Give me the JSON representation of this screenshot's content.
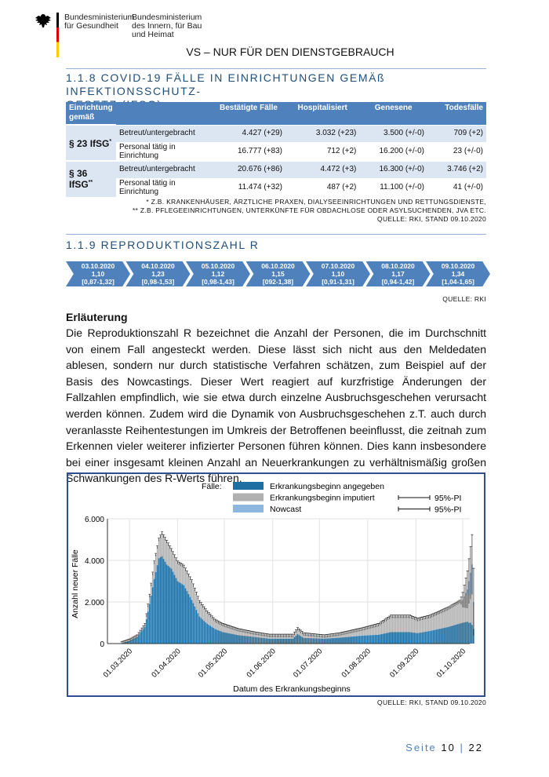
{
  "header": {
    "ministry1": [
      "Bundesministerium",
      "für Gesundheit"
    ],
    "ministry2": [
      "Bundesministerium",
      "des Innern, für Bau",
      "und Heimat"
    ],
    "classification": "VS – NUR FÜR DEN DIENSTGEBRAUCH"
  },
  "section1": {
    "title_line1": "1.1.8  COVID-19 FÄLLE IN EINRICHTUNGEN GEMÄß INFEKTIONSSCHUTZ-",
    "title_line2": "GESETZ (IFSG)",
    "columns": [
      "Einrichtung gemäß",
      "",
      "Bestätigte Fälle",
      "Hospitalisiert",
      "Genesene",
      "Todesfälle"
    ],
    "groups": [
      {
        "label": "§ 23 IfSG",
        "mark": "*",
        "rows": [
          [
            "Betreut/untergebracht",
            "4.427 (+29)",
            "3.032 (+23)",
            "3.500 (+/-0)",
            "709 (+2)"
          ],
          [
            "Personal tätig in Einrichtung",
            "16.777 (+83)",
            "712 (+2)",
            "16.200 (+/-0)",
            "23 (+/-0)"
          ]
        ]
      },
      {
        "label": "§ 36 IfSG",
        "mark": "**",
        "rows": [
          [
            "Betreut/untergebracht",
            "20.676 (+86)",
            "4.472 (+3)",
            "16.300 (+/-0)",
            "3.746 (+2)"
          ],
          [
            "Personal tätig in Einrichtung",
            "11.474 (+32)",
            "487 (+2)",
            "11.100 (+/-0)",
            "41 (+/-0)"
          ]
        ]
      }
    ],
    "footnotes": [
      "* Z.B. KRANKENHÄUSER, ÄRZTLICHE PRAXEN, DIALYSEEINRICHTUNGEN UND RETTUNGSDIENSTE,",
      "** Z.B. PFLEGEEINRICHTUNGEN, UNTERKÜNFTE FÜR OBDACHLOSE ODER ASYLSUCHENDEN, JVA ETC.",
      "QUELLE: RKI, STAND 09.10.2020"
    ]
  },
  "section2": {
    "title": "1.1.9  REPRODUKTIONSZAHL R",
    "days": [
      {
        "date": "03.10.2020",
        "r": "1,10",
        "ci": "[0,87-1,32]"
      },
      {
        "date": "04.10.2020",
        "r": "1,23",
        "ci": "[0,98-1,53]"
      },
      {
        "date": "05.10.2020",
        "r": "1,12",
        "ci": "[0,98-1,43]"
      },
      {
        "date": "06.10.2020",
        "r": "1,15",
        "ci": "[092-1,38]"
      },
      {
        "date": "07.10.2020",
        "r": "1,10",
        "ci": "[0,91-1,31]"
      },
      {
        "date": "08.10.2020",
        "r": "1,17",
        "ci": "[0,94-1,42]"
      },
      {
        "date": "09.10.2020",
        "r": "1,34",
        "ci": "[1,04-1,65]"
      }
    ],
    "source": "QUELLE: RKI",
    "expl_heading": "Erläuterung",
    "expl_text": "Die Reproduktionszahl R bezeichnet die Anzahl der Personen, die im Durchschnitt von einem Fall angesteckt werden. Diese lässt sich nicht aus den Meldedaten ablesen, sondern nur durch statistische Verfahren schätzen, zum Beispiel auf der Basis des Nowcastings. Dieser Wert reagiert auf kurzfristige Änderungen der Fallzahlen empfindlich, wie sie etwa durch einzelne Ausbruchsgeschehen verursacht werden können. Zudem wird die Dynamik von Ausbruchsgeschehen z.T. auch durch veranlasste Reihentestungen im Umkreis der Betroffenen beeinflusst, die zeitnah zum Erkennen vieler weiterer infizierter Personen führen können. Dies kann insbesondere bei einer insgesamt kleinen Anzahl an Neuerkrankungen zu verhältnismäßig großen Schwankungen des R-Werts führen.",
    "chart_source": "QUELLE: RKI, STAND 09.10.2020"
  },
  "chart_data": {
    "type": "bar",
    "stacked": true,
    "legend_title": "Fälle:",
    "legend": [
      "Erkrankungsbeginn angegeben",
      "Erkrankungsbeginn imputiert",
      "Nowcast"
    ],
    "pi_labels": [
      "95%-PI",
      "95%-PI"
    ],
    "colors": {
      "reported": "#1f6fa3",
      "imputed": "#b0b0b0",
      "nowcast": "#8cb8df"
    },
    "ylabel": "Anzahl neuer Fälle",
    "xlabel": "Datum des Erkrankungsbeginns",
    "ylim": [
      0,
      6000
    ],
    "yticks": [
      "0",
      "2.000",
      "4.000",
      "6.000"
    ],
    "ytick_values": [
      0,
      2000,
      4000,
      6000
    ],
    "xticks": [
      "01.03.2020",
      "01.04.2020",
      "01.05.2020",
      "01.06.2020",
      "01.07.2020",
      "01.08.2020",
      "01.09.2020",
      "01.10.2020"
    ],
    "xtick_days": [
      0,
      31,
      61,
      92,
      122,
      153,
      184,
      214
    ],
    "anchors_day_since_0103": [
      -5,
      0,
      5,
      10,
      13,
      16,
      19,
      21,
      24,
      27,
      31,
      35,
      40,
      45,
      50,
      55,
      60,
      70,
      80,
      90,
      100,
      105,
      108,
      112,
      125,
      135,
      150,
      160,
      168,
      180,
      185,
      193,
      205,
      214,
      217,
      218,
      219,
      220,
      221
    ],
    "total": [
      20,
      150,
      350,
      900,
      2300,
      3900,
      5000,
      5300,
      4900,
      4500,
      3900,
      3700,
      3000,
      2000,
      1500,
      1100,
      900,
      650,
      500,
      380,
      380,
      380,
      700,
      450,
      350,
      450,
      700,
      900,
      1300,
      1300,
      1150,
      1300,
      1700,
      2100,
      2400,
      2300,
      2400,
      2400,
      1800
    ],
    "reported": [
      15,
      120,
      300,
      800,
      1900,
      3100,
      4100,
      4200,
      3800,
      3600,
      3000,
      2800,
      2100,
      1300,
      950,
      700,
      550,
      400,
      320,
      230,
      230,
      230,
      450,
      270,
      230,
      280,
      380,
      420,
      550,
      550,
      500,
      600,
      800,
      1000,
      1050,
      1000,
      1000,
      900,
      700
    ],
    "nowcast": [
      0,
      0,
      0,
      0,
      0,
      0,
      0,
      0,
      0,
      0,
      0,
      0,
      0,
      0,
      0,
      0,
      0,
      0,
      0,
      0,
      0,
      0,
      0,
      0,
      0,
      0,
      0,
      0,
      0,
      0,
      0,
      0,
      0,
      0,
      200,
      700,
      1000,
      1400,
      200
    ]
  },
  "footer": {
    "page_label": "Seite",
    "page": "10",
    "total": "22"
  }
}
